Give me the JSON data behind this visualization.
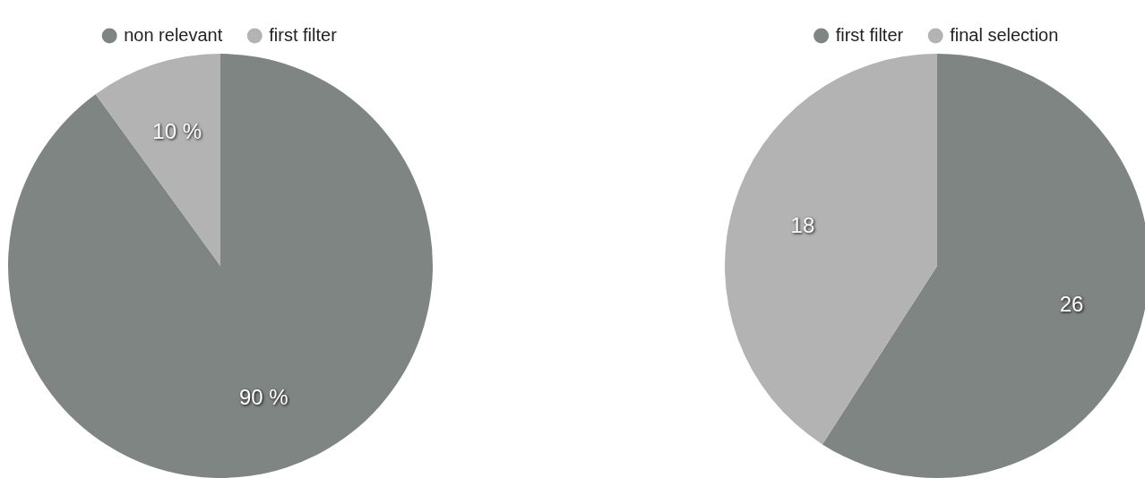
{
  "chart_data": [
    {
      "type": "pie",
      "categories": [
        "non relevant",
        "first filter"
      ],
      "values": [
        90,
        10
      ],
      "colors": [
        "#7f8583",
        "#b3b3b3"
      ],
      "value_labels": [
        "90 %",
        "10 %"
      ],
      "legend": "top"
    },
    {
      "type": "pie",
      "categories": [
        "first filter",
        "final selection"
      ],
      "values": [
        26,
        18
      ],
      "colors": [
        "#7f8583",
        "#b3b3b3"
      ],
      "data_labels": true,
      "legend": "top"
    }
  ]
}
